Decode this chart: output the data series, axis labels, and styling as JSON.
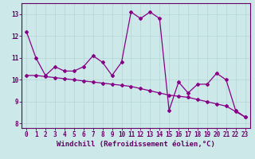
{
  "xlabel": "Windchill (Refroidissement éolien,°C)",
  "bg_color": "#cce8e8",
  "plot_bg_color": "#cce8e8",
  "line_color": "#880088",
  "grid_color": "#b8d8d8",
  "axis_color": "#660066",
  "ylim": [
    7.8,
    13.5
  ],
  "xlim": [
    -0.5,
    23.5
  ],
  "yticks": [
    8,
    9,
    10,
    11,
    12,
    13
  ],
  "xticks": [
    0,
    1,
    2,
    3,
    4,
    5,
    6,
    7,
    8,
    9,
    10,
    11,
    12,
    13,
    14,
    15,
    16,
    17,
    18,
    19,
    20,
    21,
    22,
    23
  ],
  "series1_x": [
    0,
    1,
    2,
    3,
    4,
    5,
    6,
    7,
    8,
    9,
    10,
    11,
    12,
    13,
    14,
    15,
    16,
    17,
    18,
    19,
    20,
    21,
    22,
    23
  ],
  "series1_y": [
    12.2,
    11.0,
    10.2,
    10.6,
    10.4,
    10.4,
    10.6,
    11.1,
    10.8,
    10.2,
    10.8,
    13.1,
    12.8,
    13.1,
    12.8,
    8.6,
    9.9,
    9.4,
    9.8,
    9.8,
    10.3,
    10.0,
    8.6,
    8.3
  ],
  "series2_x": [
    0,
    1,
    2,
    3,
    4,
    5,
    6,
    7,
    8,
    9,
    10,
    11,
    12,
    13,
    14,
    15,
    16,
    17,
    18,
    19,
    20,
    21,
    22,
    23
  ],
  "series2_y": [
    10.2,
    10.2,
    10.15,
    10.1,
    10.05,
    10.0,
    9.95,
    9.9,
    9.85,
    9.8,
    9.75,
    9.7,
    9.6,
    9.5,
    9.4,
    9.3,
    9.25,
    9.2,
    9.1,
    9.0,
    8.9,
    8.8,
    8.55,
    8.3
  ],
  "tick_fontsize": 5.5,
  "label_fontsize": 6.5
}
